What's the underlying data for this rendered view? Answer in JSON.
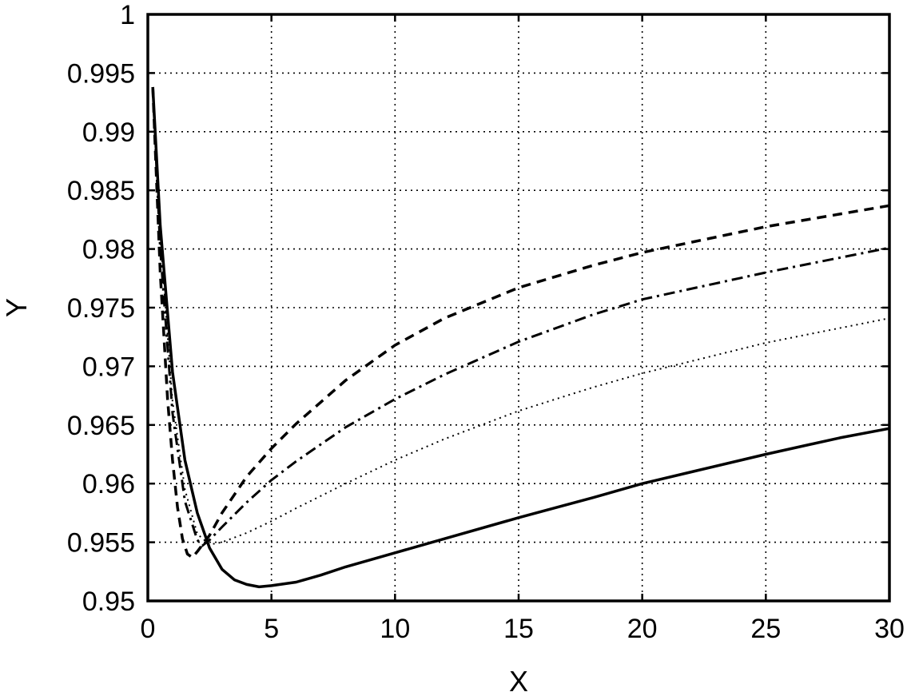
{
  "chart_data": {
    "type": "line",
    "title": "",
    "xlabel": "X",
    "ylabel": "Y",
    "xlim": [
      0,
      30
    ],
    "ylim": [
      0.95,
      1
    ],
    "xticks": [
      "0",
      "5",
      "10",
      "15",
      "20",
      "25",
      "30"
    ],
    "yticks": [
      "0.95",
      "0.955",
      "0.96",
      "0.965",
      "0.97",
      "0.975",
      "0.98",
      "0.985",
      "0.99",
      "0.995",
      "1"
    ],
    "grid": true,
    "legend": "none",
    "series": [
      {
        "style": "solid",
        "x": [
          0.2,
          0.5,
          1,
          1.5,
          2,
          2.5,
          3,
          3.5,
          4,
          4.5,
          5,
          6,
          7,
          8,
          10,
          12,
          15,
          18,
          20,
          22,
          25,
          28,
          30
        ],
        "y": [
          0.9938,
          0.982,
          0.9695,
          0.962,
          0.9575,
          0.9545,
          0.9527,
          0.9518,
          0.9514,
          0.9512,
          0.9513,
          0.9516,
          0.9522,
          0.9529,
          0.9541,
          0.9553,
          0.9571,
          0.9588,
          0.96,
          0.961,
          0.9625,
          0.9639,
          0.9647
        ]
      },
      {
        "style": "dashed",
        "x": [
          0.2,
          0.5,
          0.8,
          1,
          1.2,
          1.4,
          1.6,
          1.8,
          2,
          2.5,
          3,
          4,
          5,
          6,
          8,
          10,
          12,
          15,
          18,
          20,
          25,
          30
        ],
        "y": [
          0.9938,
          0.978,
          0.9672,
          0.962,
          0.958,
          0.9553,
          0.954,
          0.9537,
          0.9542,
          0.9556,
          0.9575,
          0.9606,
          0.963,
          0.9651,
          0.9688,
          0.9718,
          0.9741,
          0.9767,
          0.9786,
          0.9797,
          0.9819,
          0.9837
        ]
      },
      {
        "style": "dashdot",
        "x": [
          0.2,
          0.5,
          1,
          1.5,
          2,
          2.2,
          2.5,
          3,
          4,
          5,
          6,
          8,
          10,
          12,
          15,
          18,
          20,
          25,
          30
        ],
        "y": [
          0.9938,
          0.98,
          0.966,
          0.9585,
          0.9552,
          0.9547,
          0.9552,
          0.9563,
          0.9584,
          0.9603,
          0.9619,
          0.9648,
          0.9672,
          0.9693,
          0.9721,
          0.9744,
          0.9757,
          0.978,
          0.9801
        ]
      },
      {
        "style": "dotted",
        "x": [
          0.2,
          0.5,
          1,
          1.5,
          2,
          2.5,
          3,
          4,
          5,
          6,
          8,
          10,
          12,
          15,
          18,
          20,
          25,
          30
        ],
        "y": [
          0.9938,
          0.981,
          0.967,
          0.9595,
          0.9557,
          0.9548,
          0.955,
          0.9558,
          0.9568,
          0.9579,
          0.96,
          0.962,
          0.9638,
          0.9662,
          0.9682,
          0.9694,
          0.972,
          0.9741
        ]
      }
    ]
  }
}
